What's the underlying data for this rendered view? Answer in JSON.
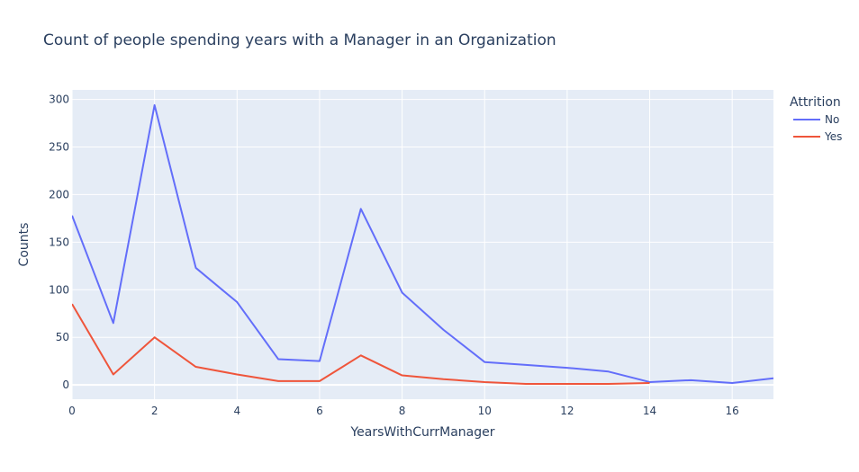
{
  "chart_data": {
    "type": "line",
    "title": "Count of people spending years with a Manager in an Organization",
    "xlabel": "YearsWithCurrManager",
    "ylabel": "Counts",
    "xlim": [
      0,
      17
    ],
    "ylim": [
      -15,
      310
    ],
    "xticks": [
      0,
      2,
      4,
      6,
      8,
      10,
      12,
      14,
      16
    ],
    "yticks": [
      0,
      50,
      100,
      150,
      200,
      250,
      300
    ],
    "grid": true,
    "legend": {
      "title": "Attrition",
      "placement": "top-right"
    },
    "series": [
      {
        "name": "No",
        "color": "#636efa",
        "x": [
          0,
          1,
          2,
          3,
          4,
          5,
          6,
          7,
          8,
          9,
          10,
          11,
          12,
          13,
          14,
          15,
          16,
          17
        ],
        "values": [
          178,
          65,
          294,
          123,
          87,
          27,
          25,
          185,
          97,
          58,
          24,
          21,
          18,
          14,
          3,
          5,
          2,
          7
        ]
      },
      {
        "name": "Yes",
        "color": "#ef553b",
        "x": [
          0,
          1,
          2,
          3,
          4,
          5,
          6,
          7,
          8,
          9,
          10,
          11,
          12,
          13,
          14
        ],
        "values": [
          85,
          11,
          50,
          19,
          11,
          4,
          4,
          31,
          10,
          6,
          3,
          1,
          1,
          1,
          2
        ]
      }
    ]
  }
}
